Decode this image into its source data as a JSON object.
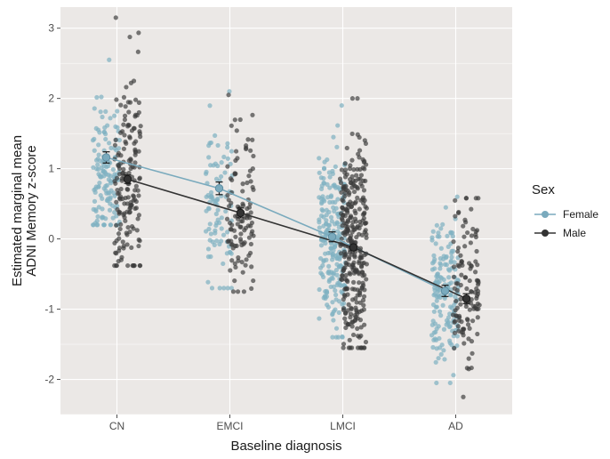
{
  "chart_data": {
    "type": "scatter",
    "xlabel": "Baseline diagnosis",
    "ylabel_line1": "Estimated marginal mean",
    "ylabel_line2": "ADNI Memory z-score",
    "categories": [
      "CN",
      "EMCI",
      "LMCI",
      "AD"
    ],
    "yticks": [
      -2,
      -1,
      0,
      1,
      2,
      3
    ],
    "ylim": [
      -2.5,
      3.3
    ],
    "grid": true,
    "background": "#ebe8e6",
    "legend": {
      "title": "Sex",
      "position": "right",
      "entries": [
        "Female",
        "Male"
      ]
    },
    "colors": {
      "Female": "#7fb1c2",
      "Male": "#3b3b3b"
    },
    "series": [
      {
        "name": "Female",
        "means": [
          1.16,
          0.72,
          0.03,
          -0.74
        ],
        "errors": [
          0.08,
          0.09,
          0.07,
          0.08
        ],
        "point_counts": [
          140,
          90,
          230,
          160
        ],
        "spread": [
          [
            0.2,
            2.55
          ],
          [
            -0.7,
            2.1
          ],
          [
            -1.4,
            1.9
          ],
          [
            -2.05,
            0.6
          ]
        ],
        "center": [
          0.9,
          0.6,
          0.0,
          -0.8
        ]
      },
      {
        "name": "Male",
        "means": [
          0.85,
          0.37,
          -0.12,
          -0.85
        ],
        "errors": [
          0.06,
          0.07,
          0.04,
          0.07
        ],
        "point_counts": [
          170,
          110,
          320,
          120
        ],
        "spread": [
          [
            -0.38,
            3.15
          ],
          [
            -0.75,
            2.05
          ],
          [
            -1.55,
            2.0
          ],
          [
            -2.25,
            0.58
          ]
        ],
        "center": [
          0.8,
          0.4,
          -0.1,
          -0.8
        ]
      }
    ]
  }
}
